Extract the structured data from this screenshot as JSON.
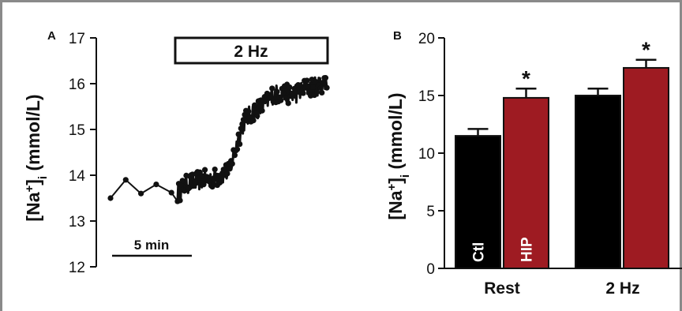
{
  "chart_data": [
    {
      "panel": "A",
      "type": "line",
      "ylabel_main": "[Na",
      "ylabel_sup": "+",
      "ylabel_bracket": "]",
      "ylabel_sub": "i",
      "ylabel_unit": " (mmol/L)",
      "ylim": [
        12,
        17
      ],
      "yticks": [
        12,
        13,
        14,
        15,
        16,
        17
      ],
      "stimulus_label": "2 Hz",
      "scalebar_label": "5 min",
      "series_color": "#111111",
      "sparse_points": [
        {
          "t": 0,
          "y": 13.5
        },
        {
          "t": 1,
          "y": 13.9
        },
        {
          "t": 2,
          "y": 13.6
        },
        {
          "t": 3,
          "y": 13.8
        },
        {
          "t": 4,
          "y": 13.62
        }
      ],
      "dense_anchors": [
        {
          "t": 4.4,
          "y": 13.6
        },
        {
          "t": 5.0,
          "y": 13.8
        },
        {
          "t": 6.0,
          "y": 13.9
        },
        {
          "t": 7.0,
          "y": 13.95
        },
        {
          "t": 7.8,
          "y": 14.1
        },
        {
          "t": 8.3,
          "y": 14.7
        },
        {
          "t": 8.8,
          "y": 15.2
        },
        {
          "t": 9.4,
          "y": 15.4
        },
        {
          "t": 10.0,
          "y": 15.5
        },
        {
          "t": 10.6,
          "y": 15.75
        },
        {
          "t": 11.2,
          "y": 15.8
        },
        {
          "t": 12.0,
          "y": 15.75
        },
        {
          "t": 12.8,
          "y": 15.9
        },
        {
          "t": 13.6,
          "y": 15.95
        },
        {
          "t": 14.2,
          "y": 16.05
        }
      ]
    },
    {
      "panel": "B",
      "type": "bar",
      "ylabel_main": "[Na",
      "ylabel_sup": "+",
      "ylabel_bracket": "]",
      "ylabel_sub": "i",
      "ylabel_unit": " (mmol/L)",
      "ylim": [
        0,
        20
      ],
      "yticks": [
        0,
        5,
        10,
        15,
        20
      ],
      "categories": [
        "Rest",
        "2 Hz"
      ],
      "series": [
        {
          "name": "Ctl",
          "color": "#000000",
          "values": [
            11.5,
            15.0
          ],
          "errors": [
            0.6,
            0.6
          ]
        },
        {
          "name": "HIP",
          "color": "#9e1b22",
          "values": [
            14.8,
            17.4
          ],
          "errors": [
            0.8,
            0.7
          ]
        }
      ],
      "significance": [
        {
          "category": "Rest",
          "series": "HIP",
          "marker": "*"
        },
        {
          "category": "2 Hz",
          "series": "HIP",
          "marker": "*"
        }
      ]
    }
  ]
}
